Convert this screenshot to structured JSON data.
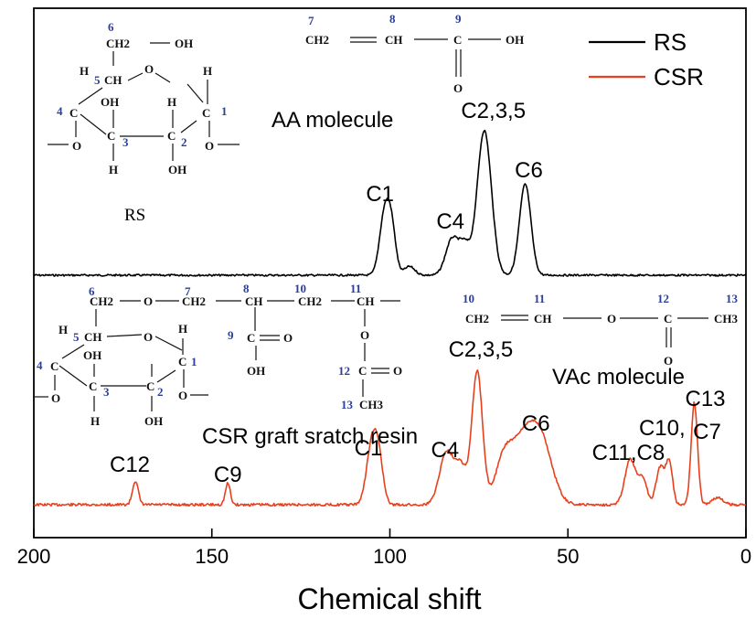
{
  "chart_data": {
    "type": "line",
    "xlabel": "Chemical shift",
    "xlim": [
      200,
      0
    ],
    "x_reversed": true,
    "x_ticks": [
      "200",
      "150",
      "100",
      "50",
      "0"
    ],
    "colors": {
      "RS": "#000000",
      "CSR": "#e8401c"
    },
    "legend": {
      "placement": "top-right",
      "entries": [
        "RS",
        "CSR"
      ]
    },
    "series": [
      {
        "name": "RS",
        "color": "#000000",
        "baseline": 0.0,
        "x_range": [
          200,
          0
        ],
        "peaks": [
          {
            "x": 101.5,
            "height": 0.55,
            "width": 1.4
          },
          {
            "x": 99.5,
            "height": 0.38,
            "width": 1.2
          },
          {
            "x": 94.5,
            "height": 0.08,
            "width": 1.5
          },
          {
            "x": 82.5,
            "height": 0.33,
            "width": 1.8
          },
          {
            "x": 79.0,
            "height": 0.25,
            "width": 1.5
          },
          {
            "x": 73.5,
            "height": 1.32,
            "width": 2.0
          },
          {
            "x": 62.0,
            "height": 0.83,
            "width": 1.6
          }
        ]
      },
      {
        "name": "CSR",
        "color": "#e8401c",
        "baseline": 0.0,
        "x_range": [
          200,
          0
        ],
        "peaks": [
          {
            "x": 171.5,
            "height": 0.2,
            "width": 0.8
          },
          {
            "x": 145.5,
            "height": 0.18,
            "width": 0.7
          },
          {
            "x": 105.0,
            "height": 0.52,
            "width": 1.5
          },
          {
            "x": 103.0,
            "height": 0.3,
            "width": 1.2
          },
          {
            "x": 84.0,
            "height": 0.45,
            "width": 2.0
          },
          {
            "x": 80.0,
            "height": 0.3,
            "width": 1.5
          },
          {
            "x": 75.5,
            "height": 1.12,
            "width": 1.5
          },
          {
            "x": 68.0,
            "height": 0.35,
            "width": 2.5
          },
          {
            "x": 62.0,
            "height": 0.55,
            "width": 3.5
          },
          {
            "x": 57.0,
            "height": 0.4,
            "width": 3.0
          },
          {
            "x": 32.5,
            "height": 0.38,
            "width": 1.5
          },
          {
            "x": 29.0,
            "height": 0.22,
            "width": 1.2
          },
          {
            "x": 24.0,
            "height": 0.32,
            "width": 1.2
          },
          {
            "x": 21.5,
            "height": 0.35,
            "width": 0.9
          },
          {
            "x": 14.5,
            "height": 0.86,
            "width": 0.9
          },
          {
            "x": 8.0,
            "height": 0.06,
            "width": 1.5
          }
        ]
      }
    ],
    "peak_labels": {
      "RS": [
        {
          "text": "C1",
          "x": 101.5
        },
        {
          "text": "C4",
          "x": 82.5
        },
        {
          "text": "C2,3,5",
          "x": 73.5
        },
        {
          "text": "C6",
          "x": 62.0
        }
      ],
      "CSR": [
        {
          "text": "C12",
          "x": 171.5
        },
        {
          "text": "C9",
          "x": 145.5
        },
        {
          "text": "C1",
          "x": 105.0
        },
        {
          "text": "C4",
          "x": 84.0
        },
        {
          "text": "C2,3,5",
          "x": 75.5
        },
        {
          "text": "C6",
          "x": 59.5
        },
        {
          "text": "C11,C8",
          "x": 32.5
        },
        {
          "text": "C10,",
          "x": 22.0
        },
        {
          "text": "C13",
          "x": 14.5
        },
        {
          "text": "C7",
          "x": 14.5
        }
      ]
    }
  },
  "annotations": {
    "aa_molecule": "AA  molecule",
    "vac_molecule": "VAc  molecule",
    "csr_name": "CSR graft sratch resin",
    "rs_name": "RS"
  },
  "structures": {
    "rs": [
      "6",
      "CH2",
      "OH",
      "H",
      "5",
      "CH",
      "O",
      "H",
      "4",
      "C",
      "OH",
      "C",
      "1",
      "H",
      "O",
      "C",
      "3",
      "C",
      "2",
      "O",
      "H",
      "OH"
    ],
    "aa": [
      "7",
      "8",
      "9",
      "CH2",
      "CH",
      "C",
      "OH",
      "O"
    ],
    "csr": [
      "6",
      "CH2",
      "O",
      "7",
      "CH2",
      "8",
      "CH",
      "10",
      "CH2",
      "11",
      "CH",
      "H",
      "5",
      "CH",
      "O",
      "H",
      "4",
      "C",
      "OH",
      "C",
      "1",
      "9",
      "C",
      "O",
      "O",
      "O",
      "C",
      "3",
      "C",
      "2",
      "O",
      "OH",
      "12",
      "C",
      "O",
      "H",
      "OH",
      "13",
      "CH3"
    ],
    "vac": [
      "10",
      "11",
      "12",
      "13",
      "CH2",
      "CH",
      "O",
      "C",
      "CH3",
      "O"
    ]
  }
}
